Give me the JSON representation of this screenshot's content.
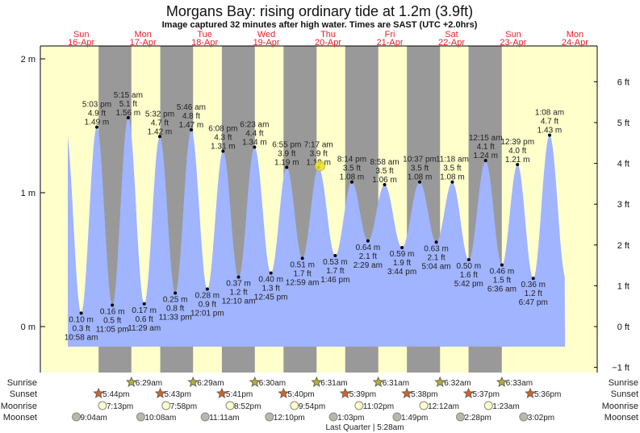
{
  "chart_data": {
    "type": "area",
    "title": "Morgans Bay: rising  ordinary tide at 1.2m (3.9ft)",
    "subtitle": "Image captured 32 minutes after high water. Times are SAST (UTC +2.0hrs)",
    "days": [
      {
        "dow": "Sun",
        "date": "16-Apr",
        "day": 16
      },
      {
        "dow": "Mon",
        "date": "17-Apr",
        "day": 17
      },
      {
        "dow": "Tue",
        "date": "18-Apr",
        "day": 18
      },
      {
        "dow": "Wed",
        "date": "19-Apr",
        "day": 19
      },
      {
        "dow": "Thu",
        "date": "20-Apr",
        "day": 20
      },
      {
        "dow": "Fri",
        "date": "21-Apr",
        "day": 21
      },
      {
        "dow": "Sat",
        "date": "22-Apr",
        "day": 22
      },
      {
        "dow": "Sun",
        "date": "23-Apr",
        "day": 23
      },
      {
        "dow": "Mon",
        "date": "24-Apr",
        "day": 24
      }
    ],
    "y_left": {
      "unit": "m",
      "ticks": [
        {
          "v": 0,
          "label": "0 m"
        },
        {
          "v": 1,
          "label": "1 m"
        },
        {
          "v": 2,
          "label": "2 m"
        }
      ],
      "range_m": [
        -0.3,
        2.1
      ]
    },
    "y_right": {
      "unit": "ft",
      "ticks": [
        {
          "v": -1,
          "label": "−1 ft"
        },
        {
          "v": 0,
          "label": "0 ft"
        },
        {
          "v": 1,
          "label": "1 ft"
        },
        {
          "v": 2,
          "label": "2 ft"
        },
        {
          "v": 3,
          "label": "3 ft"
        },
        {
          "v": 4,
          "label": "4 ft"
        },
        {
          "v": 5,
          "label": "5 ft"
        },
        {
          "v": 6,
          "label": "6 ft"
        }
      ]
    },
    "tides": [
      {
        "day": 16,
        "time": "10:58 am",
        "type": "low",
        "m": "0.10",
        "ft": "0.3"
      },
      {
        "day": 16,
        "time": "5:03 pm",
        "type": "high",
        "m": "1.49",
        "ft": "4.9"
      },
      {
        "day": 16,
        "time": "11:05 pm",
        "type": "low",
        "m": "0.16",
        "ft": "0.5"
      },
      {
        "day": 17,
        "time": "5:15 am",
        "type": "high",
        "m": "1.56",
        "ft": "5.1"
      },
      {
        "day": 17,
        "time": "11:29 am",
        "type": "low",
        "m": "0.17",
        "ft": "0.6"
      },
      {
        "day": 17,
        "time": "5:32 pm",
        "type": "high",
        "m": "1.42",
        "ft": "4.7"
      },
      {
        "day": 17,
        "time": "11:33 pm",
        "type": "low",
        "m": "0.25",
        "ft": "0.8"
      },
      {
        "day": 18,
        "time": "5:46 am",
        "type": "high",
        "m": "1.47",
        "ft": "4.8"
      },
      {
        "day": 18,
        "time": "12:01 pm",
        "type": "low",
        "m": "0.28",
        "ft": "0.9"
      },
      {
        "day": 18,
        "time": "6:08 pm",
        "type": "high",
        "m": "1.31",
        "ft": "4.3"
      },
      {
        "day": 19,
        "time": "12:10 am",
        "type": "low",
        "m": "0.37",
        "ft": "1.2"
      },
      {
        "day": 19,
        "time": "6:23 am",
        "type": "high",
        "m": "1.34",
        "ft": "4.4"
      },
      {
        "day": 19,
        "time": "12:45 pm",
        "type": "low",
        "m": "0.40",
        "ft": "1.3"
      },
      {
        "day": 19,
        "time": "6:55 pm",
        "type": "high",
        "m": "1.19",
        "ft": "3.9"
      },
      {
        "day": 20,
        "time": "12:59 am",
        "type": "low",
        "m": "0.51",
        "ft": "1.7"
      },
      {
        "day": 20,
        "time": "7:17 am",
        "type": "high",
        "m": "1.19",
        "ft": "3.9"
      },
      {
        "day": 20,
        "time": "1:46 pm",
        "type": "low",
        "m": "0.53",
        "ft": "1.7"
      },
      {
        "day": 20,
        "time": "8:14 pm",
        "type": "high",
        "m": "1.08",
        "ft": "3.5"
      },
      {
        "day": 21,
        "time": "2:29 am",
        "type": "low",
        "m": "0.64",
        "ft": "2.1"
      },
      {
        "day": 21,
        "time": "8:58 am",
        "type": "high",
        "m": "1.06",
        "ft": "3.5"
      },
      {
        "day": 21,
        "time": "3:44 pm",
        "type": "low",
        "m": "0.59",
        "ft": "1.9"
      },
      {
        "day": 21,
        "time": "10:37 pm",
        "type": "high",
        "m": "1.08",
        "ft": "3.5"
      },
      {
        "day": 22,
        "time": "5:04 am",
        "type": "low",
        "m": "0.63",
        "ft": "2.1"
      },
      {
        "day": 22,
        "time": "11:18 am",
        "type": "high",
        "m": "1.08",
        "ft": "3.5"
      },
      {
        "day": 22,
        "time": "5:42 pm",
        "type": "low",
        "m": "0.50",
        "ft": "1.6"
      },
      {
        "day": 23,
        "time": "12:15 am",
        "type": "high",
        "m": "1.24",
        "ft": "4.1"
      },
      {
        "day": 23,
        "time": "6:36 am",
        "type": "low",
        "m": "0.46",
        "ft": "1.5"
      },
      {
        "day": 23,
        "time": "12:39 pm",
        "type": "high",
        "m": "1.21",
        "ft": "4.0"
      },
      {
        "day": 23,
        "time": "6:47 pm",
        "type": "low",
        "m": "0.36",
        "ft": "1.2"
      },
      {
        "day": 24,
        "time": "1:08 am",
        "type": "high",
        "m": "1.43",
        "ft": "4.7"
      }
    ],
    "current": {
      "day": 20,
      "time": "7:49 am",
      "m": 1.2
    },
    "rows": {
      "sunrise": {
        "label": "Sunrise",
        "events": [
          {
            "day": 17,
            "time": "6:29am"
          },
          {
            "day": 18,
            "time": "6:29am"
          },
          {
            "day": 19,
            "time": "6:30am"
          },
          {
            "day": 20,
            "time": "6:31am"
          },
          {
            "day": 21,
            "time": "6:31am"
          },
          {
            "day": 22,
            "time": "6:32am"
          },
          {
            "day": 23,
            "time": "6:33am"
          }
        ]
      },
      "sunset": {
        "label": "Sunset",
        "events": [
          {
            "day": 16,
            "time": "5:44pm"
          },
          {
            "day": 17,
            "time": "5:43pm"
          },
          {
            "day": 18,
            "time": "5:41pm"
          },
          {
            "day": 19,
            "time": "5:40pm"
          },
          {
            "day": 20,
            "time": "5:39pm"
          },
          {
            "day": 21,
            "time": "5:38pm"
          },
          {
            "day": 22,
            "time": "5:37pm"
          },
          {
            "day": 23,
            "time": "5:36pm"
          }
        ]
      },
      "moonrise": {
        "label": "Moonrise",
        "events": [
          {
            "day": 16,
            "time": "7:13pm"
          },
          {
            "day": 17,
            "time": "7:58pm"
          },
          {
            "day": 18,
            "time": "8:52pm"
          },
          {
            "day": 19,
            "time": "9:54pm"
          },
          {
            "day": 20,
            "time": "11:02pm"
          },
          {
            "day": 22,
            "time": "12:12am"
          },
          {
            "day": 23,
            "time": "1:23am"
          }
        ]
      },
      "moonset": {
        "label": "Moonset",
        "events": [
          {
            "day": 16,
            "time": "9:04am"
          },
          {
            "day": 17,
            "time": "10:08am"
          },
          {
            "day": 18,
            "time": "11:11am"
          },
          {
            "day": 19,
            "time": "12:10pm"
          },
          {
            "day": 20,
            "time": "1:03pm"
          },
          {
            "day": 21,
            "time": "1:49pm"
          },
          {
            "day": 22,
            "time": "2:28pm"
          },
          {
            "day": 23,
            "time": "3:02pm"
          }
        ]
      }
    },
    "moon_phase": "Last Quarter | 5:28am"
  },
  "colors": {
    "day": "#ffffcc",
    "night": "#999999",
    "water": "#a0b4ff",
    "daylabel": "#e8202a",
    "sunrise": "#b8b030",
    "sunset": "#d8602a",
    "moonrise": "#ffffc8",
    "moonset": "#b8b8b0"
  }
}
